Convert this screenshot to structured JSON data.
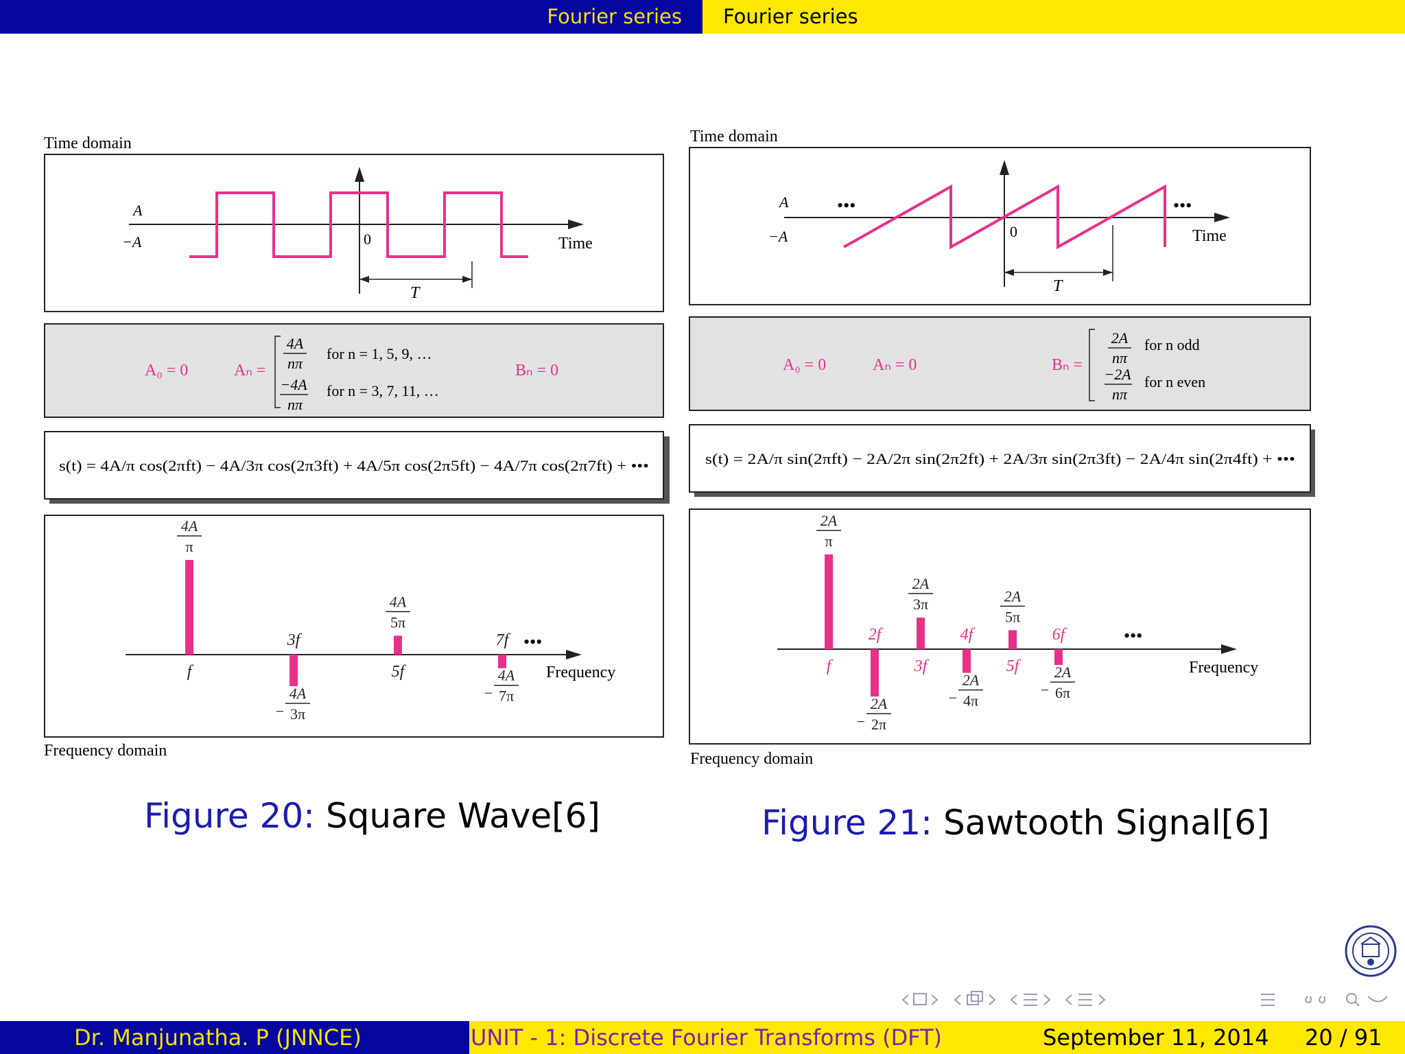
{
  "header": {
    "section": "Fourier series",
    "subsection": "Fourier series"
  },
  "colors": {
    "magenta": "#e8308a",
    "navy": "#0505a0",
    "yellow": "#ffe800",
    "caption_blue": "#1c1cb0",
    "footer_purple": "#7f1fa8"
  },
  "left_figure": {
    "time_label": "Time domain",
    "freq_label": "Frequency domain",
    "amp_pos": "A",
    "amp_neg": "−A",
    "origin": "0",
    "time_axis": "Time",
    "period": "T",
    "coef_a0": "A₀ = 0",
    "coef_an": "Aₙ =",
    "an_case1_num": "4A",
    "an_case1_den": "nπ",
    "an_case1_cond": "for n = 1, 5, 9, …",
    "an_case2_num": "−4A",
    "an_case2_den": "nπ",
    "an_case2_cond": "for n = 3, 7, 11, …",
    "coef_bn": "Bₙ = 0",
    "series_expr": "s(t) = 4A/π cos(2πft) − 4A/3π cos(2π3ft) + 4A/5π cos(2π5ft) − 4A/7π cos(2π7ft) + •••",
    "freq_axis": "Frequency",
    "dots": "•••",
    "spectrum": [
      {
        "freq": "f",
        "num": "4A",
        "den": "π",
        "sign": "",
        "value": 1.0
      },
      {
        "freq": "3f",
        "num": "4A",
        "den": "3π",
        "sign": "−",
        "value": -0.333
      },
      {
        "freq": "5f",
        "num": "4A",
        "den": "5π",
        "sign": "",
        "value": 0.2
      },
      {
        "freq": "7f",
        "num": "4A",
        "den": "7π",
        "sign": "−",
        "value": -0.143
      }
    ]
  },
  "right_figure": {
    "time_label": "Time domain",
    "freq_label": "Frequency domain",
    "amp_pos": "A",
    "amp_neg": "−A",
    "origin": "0",
    "time_axis": "Time",
    "period": "T",
    "dots": "•••",
    "coef_a0": "A₀ = 0",
    "coef_an": "Aₙ = 0",
    "coef_bn": "Bₙ =",
    "bn_case1_num": "2A",
    "bn_case1_den": "nπ",
    "bn_case1_cond": "for n odd",
    "bn_case2_num": "−2A",
    "bn_case2_den": "nπ",
    "bn_case2_cond": "for n even",
    "series_expr": "s(t) = 2A/π sin(2πft) − 2A/2π sin(2π2ft) + 2A/3π sin(2π3ft) − 2A/4π sin(2π4ft) + •••",
    "freq_axis": "Frequency",
    "spectrum": [
      {
        "freq": "f",
        "num": "2A",
        "den": "π",
        "sign": "",
        "value": 1.0
      },
      {
        "freq": "2f",
        "num": "2A",
        "den": "2π",
        "sign": "−",
        "value": -0.5
      },
      {
        "freq": "3f",
        "num": "2A",
        "den": "3π",
        "sign": "",
        "value": 0.333
      },
      {
        "freq": "4f",
        "num": "2A",
        "den": "4π",
        "sign": "−",
        "value": -0.25
      },
      {
        "freq": "5f",
        "num": "2A",
        "den": "5π",
        "sign": "",
        "value": 0.2
      },
      {
        "freq": "6f",
        "num": "2A",
        "den": "6π",
        "sign": "−",
        "value": -0.167
      }
    ]
  },
  "captions": {
    "left_label": "Figure 20:",
    "left_text": "Square Wave[6]",
    "right_label": "Figure 21:",
    "right_text": "Sawtooth Signal[6]"
  },
  "footer": {
    "author": "Dr. Manjunatha. P   (JNNCE)",
    "title": "UNIT - 1: Discrete Fourier Transforms (DFT)",
    "date": "September 11, 2014",
    "page": "20 / 91"
  }
}
